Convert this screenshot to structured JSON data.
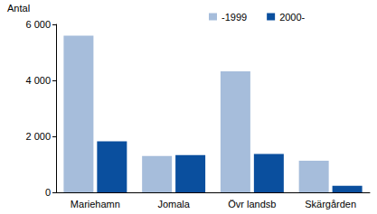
{
  "chart_data": {
    "type": "bar",
    "y_label": "Antal",
    "categories": [
      "Mariehamn",
      "Jomala",
      "Övr landsb",
      "Skärgården"
    ],
    "series": [
      {
        "name": "-1999",
        "color": "#a6bddb",
        "values": [
          5600,
          1300,
          4320,
          1130
        ]
      },
      {
        "name": "2000-",
        "color": "#0a4f9e",
        "values": [
          1820,
          1330,
          1370,
          230
        ]
      }
    ],
    "ylim": [
      0,
      6000
    ],
    "yticks": [
      0,
      {
        "value": 2000,
        "label": "2 000"
      },
      {
        "value": 4000,
        "label": "4 000"
      },
      {
        "value": 6000,
        "label": "6 000"
      }
    ],
    "grid": false,
    "legend": "top"
  }
}
